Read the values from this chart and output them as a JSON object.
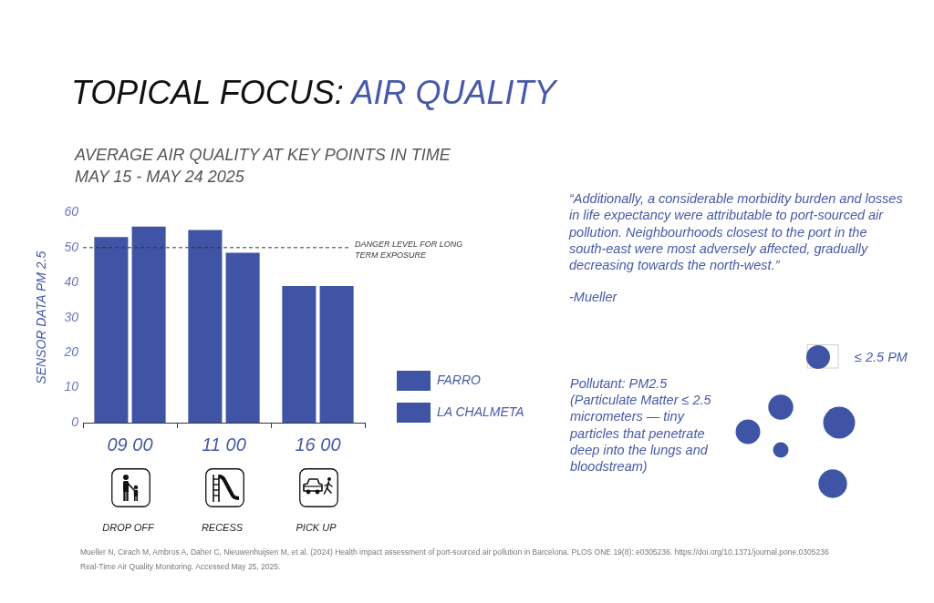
{
  "chart_data": {
    "type": "bar",
    "title": "TOPICAL FOCUS: AIR QUALITY",
    "subtitle": "AVERAGE AIR QUALITY AT KEY POINTS IN TIME\nMAY 15 - MAY 24 2025",
    "ylabel": "SENSOR DATA PM 2.5",
    "categories": [
      "09 00",
      "11 00",
      "16 00"
    ],
    "series": [
      {
        "name": "FARRO",
        "color": "#3f54a5",
        "values": [
          53,
          55,
          39
        ]
      },
      {
        "name": "LA CHALMETA",
        "color": "#3f54a5",
        "values": [
          56,
          48.5,
          39
        ]
      }
    ],
    "ylim": [
      0,
      60
    ],
    "yticks": [
      0,
      10,
      20,
      30,
      40,
      50,
      60
    ],
    "grid": false,
    "legend": "right",
    "ref_lines": [
      {
        "axis": "y",
        "value": 50,
        "label": "DANGER LEVEL FOR LONG TERM EXPOSURE",
        "line_style": "dashed",
        "color": "#333333"
      }
    ],
    "annotations": [
      "DROP OFF",
      "RECESS",
      "PICK UP",
      "“Additionally, a considerable morbidity burden and losses in life expectancy were attributable to port-sourced air pollution. Neighbourhoods closest to the port in the south-east were most adversely affected, gradually decreasing towards the north-west.”",
      "-Mueller",
      "Pollutant: PM2.5\n(Particulate Matter ≤ 2.5 micrometers — tiny particles that penetrate deep into the lungs and bloodstream)",
      "≤ 2.5 PM",
      "Mueller N, Cirach M, Ambros A, Daher C, Nieuwenhuijsen M, et al. (2024) Health impact assessment of port-sourced air pollution in Barcelona. PLOS ONE 19(8): e0305236. https://doi.org/10.1371/journal.pone.0305236",
      "Real-Time Air Quality Monitoring. Accessed May 25, 2025."
    ]
  }
}
